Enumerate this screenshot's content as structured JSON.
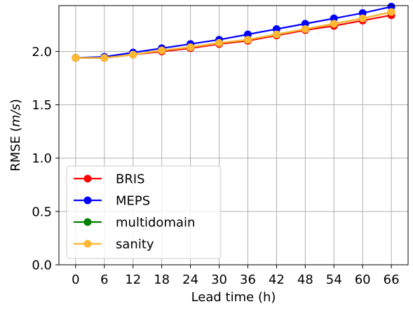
{
  "chart_data": {
    "type": "line",
    "title": "",
    "xlabel": "Lead time (h)",
    "ylabel_prefix": "RMSE (",
    "ylabel_unit": "m/s",
    "ylabel_suffix": ")",
    "x": [
      0,
      6,
      12,
      18,
      24,
      30,
      36,
      42,
      48,
      54,
      60,
      66
    ],
    "xticks": [
      "0",
      "6",
      "12",
      "18",
      "24",
      "30",
      "36",
      "42",
      "48",
      "54",
      "60",
      "66"
    ],
    "yticks": [
      "0.0",
      "0.5",
      "1.0",
      "1.5",
      "2.0"
    ],
    "ytick_values": [
      0.0,
      0.5,
      1.0,
      1.5,
      2.0
    ],
    "xlim": [
      -3.5,
      69.5
    ],
    "ylim": [
      0.0,
      2.43
    ],
    "grid": true,
    "legend_position": "lower-left",
    "series": [
      {
        "name": "BRIS",
        "color": "#ff0000",
        "values": [
          1.94,
          1.94,
          1.97,
          2.0,
          2.03,
          2.07,
          2.1,
          2.15,
          2.2,
          2.24,
          2.29,
          2.34
        ]
      },
      {
        "name": "MEPS",
        "color": "#0000ff",
        "values": [
          1.94,
          1.95,
          1.99,
          2.03,
          2.07,
          2.11,
          2.16,
          2.21,
          2.26,
          2.31,
          2.36,
          2.42
        ]
      },
      {
        "name": "multidomain",
        "color": "#008000",
        "values": [
          1.94,
          1.94,
          1.97,
          2.01,
          2.04,
          2.08,
          2.11,
          2.16,
          2.21,
          2.26,
          2.31,
          2.37
        ]
      },
      {
        "name": "sanity",
        "color": "#ffb833",
        "values": [
          1.94,
          1.94,
          1.97,
          2.01,
          2.04,
          2.08,
          2.11,
          2.16,
          2.21,
          2.26,
          2.31,
          2.37
        ]
      }
    ]
  }
}
